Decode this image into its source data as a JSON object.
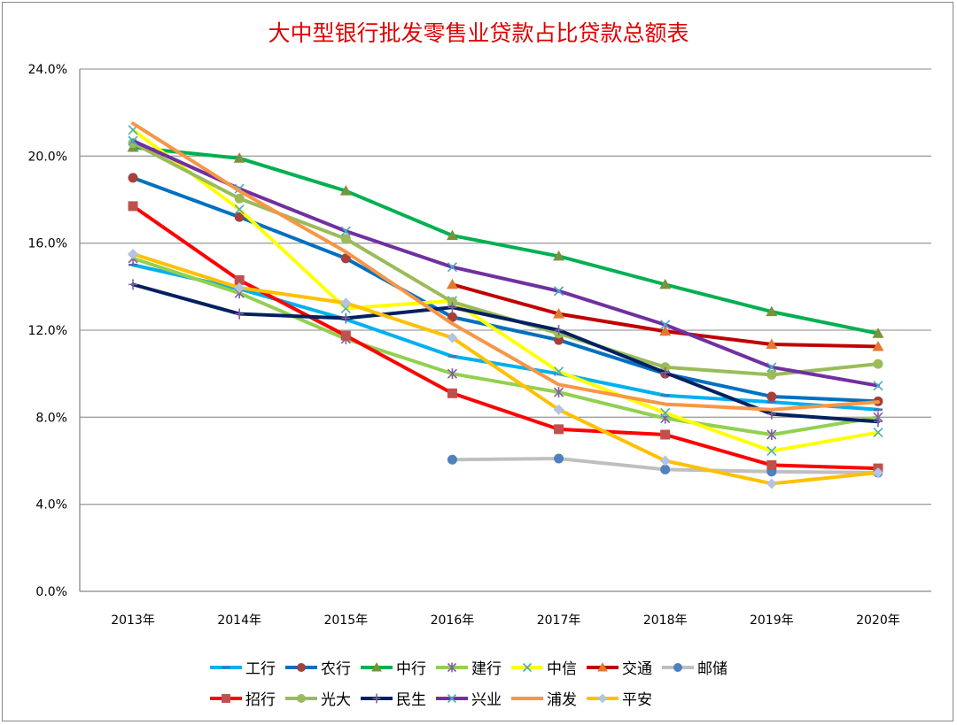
{
  "chart_data": {
    "type": "line",
    "title": "大中型银行批发零售业贷款占比贷款总额表",
    "categories": [
      "2013年",
      "2014年",
      "2015年",
      "2016年",
      "2017年",
      "2018年",
      "2019年",
      "2020年"
    ],
    "yticks": [
      "0.0%",
      "4.0%",
      "8.0%",
      "12.0%",
      "16.0%",
      "20.0%",
      "24.0%"
    ],
    "ylim": [
      0,
      24
    ],
    "yunit": "%",
    "grid": true,
    "legend": "bottom",
    "series": [
      {
        "name": "工行",
        "color": "#00B0F0",
        "marker": "dash",
        "markerColor": "#4F6FA8",
        "values": [
          15.0,
          13.9,
          12.5,
          10.8,
          10.0,
          9.0,
          8.7,
          8.35
        ]
      },
      {
        "name": "农行",
        "color": "#0070C0",
        "marker": "circle",
        "markerColor": "#A5403D",
        "values": [
          19.0,
          17.2,
          15.3,
          12.6,
          11.55,
          10.0,
          8.95,
          8.73
        ]
      },
      {
        "name": "中行",
        "color": "#00B050",
        "marker": "triangle",
        "markerColor": "#77933C",
        "values": [
          20.4,
          19.9,
          18.4,
          16.35,
          15.4,
          14.1,
          12.85,
          11.85
        ]
      },
      {
        "name": "建行",
        "color": "#92D050",
        "marker": "star",
        "markerColor": "#7F5FA0",
        "values": [
          15.3,
          13.7,
          11.6,
          10.0,
          9.15,
          7.95,
          7.2,
          8.0
        ]
      },
      {
        "name": "中信",
        "color": "#FFFF00",
        "marker": "x",
        "markerColor": "#4BACC6",
        "values": [
          21.2,
          17.55,
          13.0,
          13.35,
          10.1,
          8.2,
          6.45,
          7.3
        ]
      },
      {
        "name": "交通",
        "color": "#C00000",
        "marker": "triangle",
        "markerColor": "#E07A2F",
        "values": [
          null,
          null,
          null,
          14.1,
          12.75,
          11.95,
          11.35,
          11.25
        ]
      },
      {
        "name": "邮储",
        "color": "#BFBFBF",
        "marker": "circle",
        "markerColor": "#4F81BD",
        "values": [
          null,
          null,
          null,
          6.05,
          6.1,
          5.6,
          5.5,
          5.45
        ]
      },
      {
        "name": "招行",
        "color": "#FF0000",
        "marker": "square",
        "markerColor": "#C0504D",
        "values": [
          17.7,
          14.3,
          11.75,
          9.1,
          7.45,
          7.2,
          5.8,
          5.65
        ]
      },
      {
        "name": "光大",
        "color": "#9BBB59",
        "marker": "circle",
        "markerColor": "#9BBB59",
        "values": [
          20.6,
          18.05,
          16.2,
          13.3,
          11.85,
          10.3,
          9.95,
          10.45
        ]
      },
      {
        "name": "民生",
        "color": "#002060",
        "marker": "plus",
        "markerColor": "#7F5FA0",
        "values": [
          14.1,
          12.75,
          12.55,
          13.05,
          12.0,
          10.05,
          8.15,
          7.8
        ]
      },
      {
        "name": "兴业",
        "color": "#7030A0",
        "marker": "x",
        "markerColor": "#4BACC6",
        "values": [
          20.7,
          18.5,
          16.55,
          14.9,
          13.8,
          12.25,
          10.3,
          9.45
        ]
      },
      {
        "name": "浦发",
        "color": "#F79646",
        "marker": "none",
        "markerColor": "#F79646",
        "values": [
          21.5,
          18.4,
          15.6,
          12.3,
          9.5,
          8.6,
          8.35,
          8.7
        ]
      },
      {
        "name": "平安",
        "color": "#FFC000",
        "marker": "diamond",
        "markerColor": "#B4C3E0",
        "values": [
          15.5,
          13.95,
          13.25,
          11.65,
          8.35,
          6.0,
          4.95,
          5.45
        ]
      }
    ]
  }
}
